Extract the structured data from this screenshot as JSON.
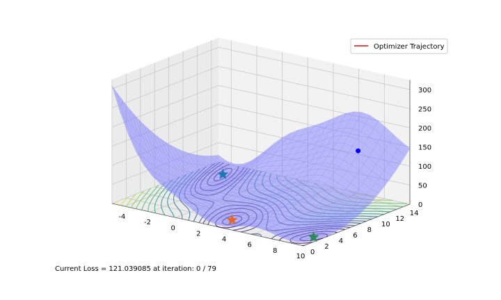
{
  "chart_data": {
    "type": "surface3d",
    "title": "",
    "xlabel": "",
    "ylabel": "",
    "zlabel": "",
    "xlim": [
      -5,
      10
    ],
    "ylim": [
      0,
      15
    ],
    "zlim": [
      0,
      300
    ],
    "x_ticks": [
      "-4",
      "-2",
      "0",
      "2",
      "4",
      "6",
      "8",
      "10"
    ],
    "y_ticks": [
      "0",
      "2",
      "4",
      "6",
      "8",
      "10",
      "12",
      "14"
    ],
    "z_ticks": [
      "0",
      "50",
      "100",
      "150",
      "200",
      "250",
      "300"
    ],
    "grid": true,
    "legend": {
      "position": "top-right",
      "entries": [
        {
          "label": "Optimizer Trajectory",
          "color": "#ff0000"
        }
      ]
    },
    "surface_color": "#8080ff",
    "current_point": {
      "x": 6.5,
      "y": 14,
      "z": 121.04,
      "color": "#0000ff"
    },
    "minima": [
      {
        "x": -3.14,
        "y": 12.275,
        "z": 0.398,
        "color": "#1f77b4"
      },
      {
        "x": 3.14,
        "y": 2.275,
        "z": 0.398,
        "color": "#e0662a"
      },
      {
        "x": 9.42,
        "y": 2.475,
        "z": 0.398,
        "color": "#2e8b57"
      }
    ]
  },
  "status": {
    "text": "Current Loss = 121.039085 at iteration: 0 / 79"
  }
}
